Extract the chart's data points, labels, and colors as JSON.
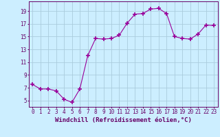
{
  "x": [
    0,
    1,
    2,
    3,
    4,
    5,
    6,
    7,
    8,
    9,
    10,
    11,
    12,
    13,
    14,
    15,
    16,
    17,
    18,
    19,
    20,
    21,
    22,
    23
  ],
  "y": [
    7.5,
    6.8,
    6.8,
    6.5,
    5.2,
    4.7,
    6.8,
    12.0,
    14.7,
    14.6,
    14.7,
    15.2,
    17.1,
    18.5,
    18.6,
    19.3,
    19.4,
    18.6,
    15.0,
    14.7,
    14.6,
    15.4,
    16.8,
    16.7
  ],
  "line_color": "#990099",
  "marker": "+",
  "marker_size": 4,
  "bg_color": "#cceeff",
  "grid_color": "#aaccdd",
  "xlabel": "Windchill (Refroidissement éolien,°C)",
  "xlim": [
    -0.5,
    23.5
  ],
  "ylim": [
    4.0,
    20.5
  ],
  "yticks": [
    5,
    7,
    9,
    11,
    13,
    15,
    17,
    19
  ],
  "xticks": [
    0,
    1,
    2,
    3,
    4,
    5,
    6,
    7,
    8,
    9,
    10,
    11,
    12,
    13,
    14,
    15,
    16,
    17,
    18,
    19,
    20,
    21,
    22,
    23
  ],
  "tick_fontsize": 5.5,
  "label_fontsize": 6.5,
  "tick_color": "#660066",
  "label_color": "#660066",
  "line_width": 0.8,
  "marker_thickness": 1.2
}
